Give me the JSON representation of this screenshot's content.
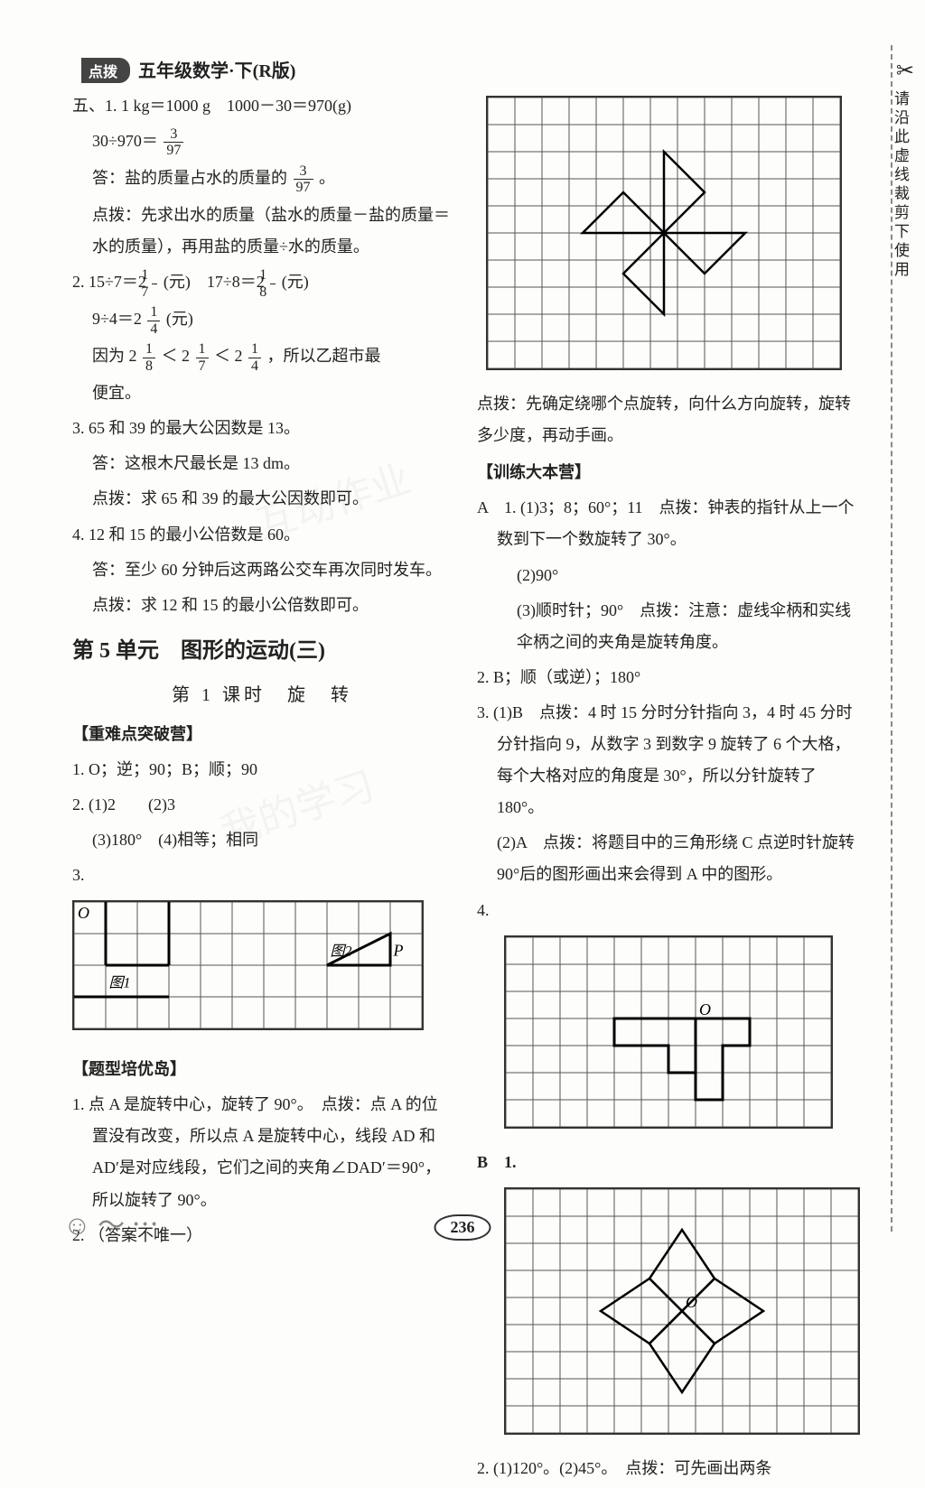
{
  "header": {
    "banner": "点拨",
    "title": "五年级数学·下(R版)"
  },
  "side_note": "请沿此虚线裁剪下使用",
  "page_number": "236",
  "left": {
    "p1a": "五、1. 1 kg＝1000 g　1000－30＝970(g)",
    "p1b_pre": "30÷970＝",
    "p1b_num": "3",
    "p1b_den": "97",
    "p2_pre": "答：盐的质量占水的质量的",
    "p2_num": "3",
    "p2_den": "97",
    "p2_post": "。",
    "p3": "点拨：先求出水的质量（盐水的质量－盐的质量＝水的质量），再用盐的质量÷水的质量。",
    "p4_a": "2. 15÷7＝2",
    "p4_a_num": "1",
    "p4_a_den": "7",
    "p4_a_post": "(元)　17÷8＝2",
    "p4_b_num": "1",
    "p4_b_den": "8",
    "p4_b_post": "(元)",
    "p4_c": "9÷4＝2",
    "p4_c_num": "1",
    "p4_c_den": "4",
    "p4_c_post": "(元)",
    "p5_pre": "因为 2",
    "p5_n1": "1",
    "p5_d1": "8",
    "p5_mid1": " ＜ 2",
    "p5_n2": "1",
    "p5_d2": "7",
    "p5_mid2": " ＜ 2",
    "p5_n3": "1",
    "p5_d3": "4",
    "p5_post": "，所以乙超市最",
    "p5b": "便宜。",
    "p6": "3. 65 和 39 的最大公因数是 13。",
    "p6a": "答：这根木尺最长是 13 dm。",
    "p6b": "点拨：求 65 和 39 的最大公因数即可。",
    "p7": "4. 12 和 15 的最小公倍数是 60。",
    "p7a": "答：至少 60 分钟后这两路公交车再次同时发车。",
    "p7b": "点拨：求 12 和 15 的最小公倍数即可。",
    "unit_title": "第 5 单元　图形的运动(三)",
    "lesson_title": "第 1 课时　旋　转",
    "sec1": "【重难点突破营】",
    "s1_1": "1. O；逆；90；B；顺；90",
    "s1_2": "2. (1)2　　(2)3",
    "s1_2b": "(3)180°　(4)相等；相同",
    "s1_3": "3.",
    "sec2": "【题型培优岛】",
    "s2_1": "1. 点 A 是旋转中心，旋转了 90°。　点拨：点 A 的位置没有改变，所以点 A 是旋转中心，线段 AD 和 AD′是对应线段，它们之间的夹角∠DAD′＝90°，所以旋转了 90°。",
    "s2_2": "2. （答案不唯一）",
    "grid3": {
      "cols": 11,
      "rows": 4,
      "cell": 35,
      "labelO": "O",
      "label1": "图1",
      "label2": "图2",
      "labelP": "P"
    }
  },
  "right": {
    "grid_top": {
      "cols": 13,
      "rows": 10,
      "cell": 30
    },
    "rp1": "点拨：先确定绕哪个点旋转，向什么方向旋转，旋转多少度，再动手画。",
    "sec3": "【训练大本营】",
    "a1": "A　1. (1)3；8；60°；11　点拨：钟表的指针从上一个数到下一个数旋转了 30°。",
    "a1b": "(2)90°",
    "a1c": "(3)顺时针；90°　点拨：注意：虚线伞柄和实线伞柄之间的夹角是旋转角度。",
    "a2": "2. B；顺（或逆）；180°",
    "a3": "3. (1)B　点拨：4 时 15 分时分针指向 3，4 时 45 分时分针指向 9，从数字 3 到数字 9 旋转了 6 个大格，每个大格对应的角度是 30°，所以分针旋转了 180°。",
    "a3b": "(2)A　点拨：将题目中的三角形绕 C 点逆时针旋转 90°后的图形画出来会得到 A 中的图形。",
    "a4": "4.",
    "grid4": {
      "cols": 12,
      "rows": 7,
      "cell": 30,
      "labelO": "O"
    },
    "b_head": "B　1.",
    "gridB": {
      "cols": 13,
      "rows": 9,
      "cell": 30,
      "labelO": "O"
    },
    "b2": "2. (1)120°。(2)45°。　点拨：可先画出两条"
  }
}
